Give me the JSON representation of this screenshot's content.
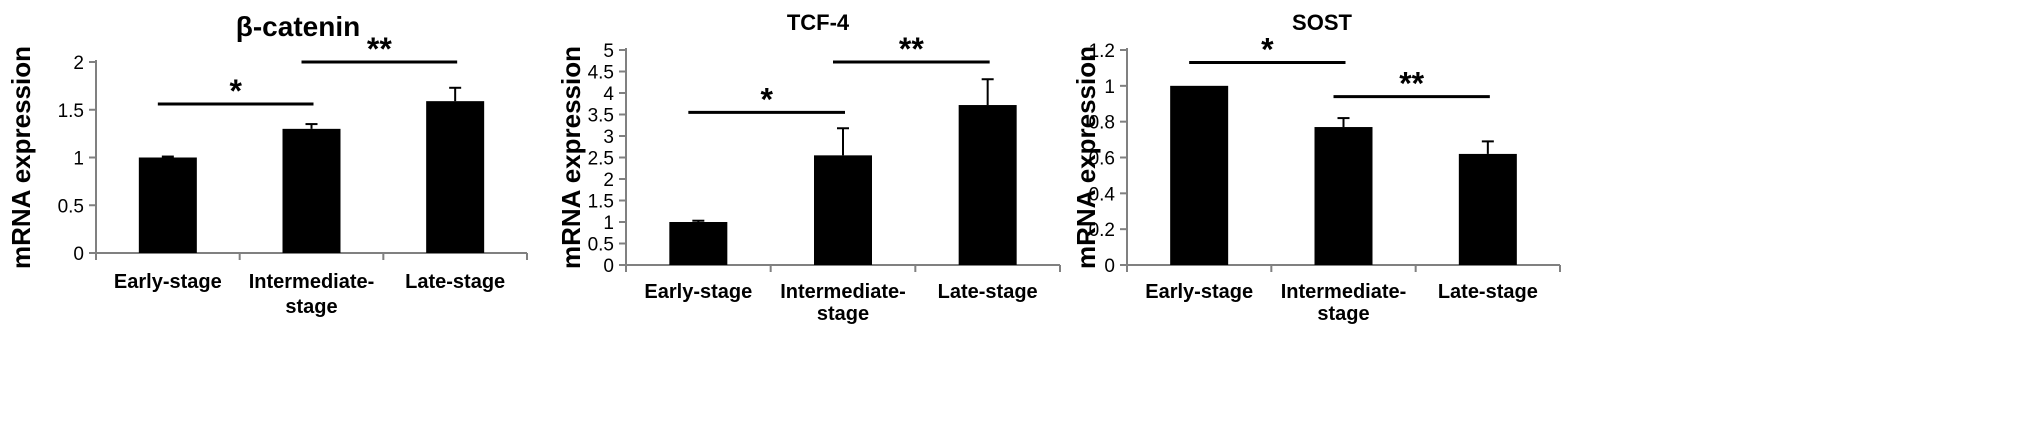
{
  "chart_data": [
    {
      "type": "bar",
      "title": "β-catenin",
      "ylabel": "mRNA expression",
      "xlabel": "",
      "categories": [
        [
          "Early-stage"
        ],
        [
          "Intermediate-",
          "stage"
        ],
        [
          "Late-stage"
        ]
      ],
      "values": [
        1.0,
        1.3,
        1.59
      ],
      "errors": [
        0.01,
        0.05,
        0.14
      ],
      "ylim": [
        0,
        2
      ],
      "yticks": [
        "0",
        "0.5",
        "1",
        "1.5",
        "2"
      ],
      "ytick_values": [
        0,
        0.5,
        1,
        1.5,
        2
      ],
      "grid": false,
      "bar_color": "#000000",
      "significance": [
        {
          "from": 0,
          "to": 1,
          "label": "*",
          "y": 1.56
        },
        {
          "from": 1,
          "to": 2,
          "label": "**",
          "y": 2.0
        }
      ]
    },
    {
      "type": "bar",
      "title": "TCF-4",
      "ylabel": "mRNA expression",
      "xlabel": "",
      "categories": [
        [
          "Early-stage"
        ],
        [
          "Intermediate-",
          "stage"
        ],
        [
          "Late-stage"
        ]
      ],
      "values": [
        1.0,
        2.55,
        3.72
      ],
      "errors": [
        0.03,
        0.63,
        0.6
      ],
      "ylim": [
        0,
        5
      ],
      "yticks": [
        "0",
        "0.5",
        "1",
        "1.5",
        "2",
        "2.5",
        "3",
        "3.5",
        "4",
        "4.5",
        "5"
      ],
      "ytick_values": [
        0,
        0.5,
        1,
        1.5,
        2,
        2.5,
        3,
        3.5,
        4,
        4.5,
        5
      ],
      "grid": false,
      "bar_color": "#000000",
      "significance": [
        {
          "from": 0,
          "to": 1,
          "label": "*",
          "y": 3.55
        },
        {
          "from": 1,
          "to": 2,
          "label": "**",
          "y": 4.72
        }
      ]
    },
    {
      "type": "bar",
      "title": "SOST",
      "ylabel": "mRNA expression",
      "xlabel": "",
      "categories": [
        [
          "Early-stage"
        ],
        [
          "Intermediate-",
          "stage"
        ],
        [
          "Late-stage"
        ]
      ],
      "values": [
        1.0,
        0.77,
        0.62
      ],
      "errors": [
        0.0,
        0.05,
        0.07
      ],
      "ylim": [
        0,
        1.2
      ],
      "yticks": [
        "0",
        "0.2",
        "0.4",
        "0.6",
        "0.8",
        "1",
        "1.2"
      ],
      "ytick_values": [
        0,
        0.2,
        0.4,
        0.6,
        0.8,
        1,
        1.2
      ],
      "grid": false,
      "bar_color": "#000000",
      "significance": [
        {
          "from": 0,
          "to": 1,
          "label": "*",
          "y": 1.13
        },
        {
          "from": 1,
          "to": 2,
          "label": "**",
          "y": 0.94
        }
      ]
    }
  ]
}
